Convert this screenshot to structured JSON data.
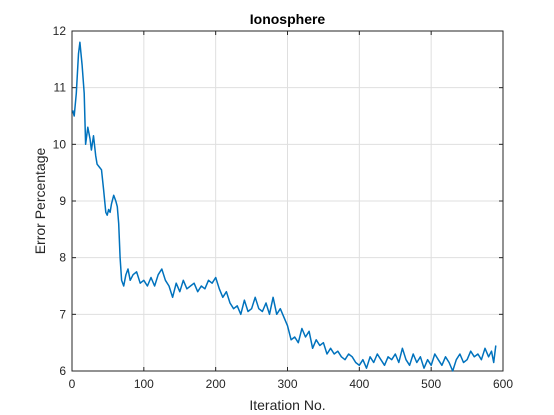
{
  "chart_data": {
    "type": "line",
    "title": "Ionosphere",
    "xlabel": "Iteration No.",
    "ylabel": "Error Percentage",
    "xlim": [
      0,
      600
    ],
    "ylim": [
      6,
      12
    ],
    "xticks": [
      0,
      100,
      200,
      300,
      400,
      500,
      600
    ],
    "yticks": [
      6,
      7,
      8,
      9,
      10,
      11,
      12
    ],
    "grid": true,
    "legend": "none",
    "colors": {
      "line": "#0072bd",
      "grid": "#dfdfdf",
      "axis": "#262626"
    },
    "series": [
      {
        "x": [
          1,
          3,
          6,
          9,
          11,
          14,
          17,
          19,
          22,
          25,
          27,
          30,
          33,
          35,
          38,
          41,
          44,
          47,
          49,
          51,
          53,
          55,
          58,
          61,
          63,
          65,
          67,
          69,
          72,
          75,
          78,
          81,
          85,
          90,
          95,
          100,
          105,
          110,
          115,
          120,
          125,
          130,
          135,
          140,
          145,
          150,
          155,
          160,
          165,
          170,
          175,
          180,
          185,
          190,
          195,
          200,
          205,
          210,
          215,
          220,
          225,
          230,
          235,
          240,
          245,
          250,
          255,
          260,
          265,
          270,
          275,
          280,
          285,
          290,
          295,
          300,
          305,
          310,
          315,
          320,
          325,
          330,
          335,
          340,
          345,
          350,
          355,
          360,
          365,
          370,
          375,
          380,
          385,
          390,
          395,
          400,
          405,
          410,
          415,
          420,
          425,
          430,
          435,
          440,
          445,
          450,
          455,
          460,
          465,
          470,
          475,
          480,
          485,
          490,
          495,
          500,
          505,
          510,
          515,
          520,
          525,
          530,
          535,
          540,
          545,
          550,
          555,
          560,
          565,
          570,
          575,
          580,
          584,
          587,
          590
        ],
        "y": [
          10.6,
          10.5,
          10.9,
          11.6,
          11.8,
          11.4,
          10.9,
          10.0,
          10.3,
          10.1,
          9.9,
          10.15,
          9.8,
          9.65,
          9.6,
          9.55,
          9.2,
          8.8,
          8.75,
          8.85,
          8.8,
          8.95,
          9.1,
          9.0,
          8.9,
          8.6,
          8.0,
          7.6,
          7.5,
          7.7,
          7.8,
          7.6,
          7.7,
          7.75,
          7.55,
          7.6,
          7.5,
          7.65,
          7.5,
          7.7,
          7.8,
          7.6,
          7.5,
          7.3,
          7.55,
          7.4,
          7.6,
          7.45,
          7.5,
          7.55,
          7.4,
          7.5,
          7.45,
          7.6,
          7.55,
          7.65,
          7.45,
          7.3,
          7.4,
          7.2,
          7.1,
          7.15,
          7.0,
          7.25,
          7.05,
          7.1,
          7.3,
          7.1,
          7.05,
          7.2,
          7.0,
          7.3,
          7.0,
          7.1,
          6.95,
          6.8,
          6.55,
          6.6,
          6.5,
          6.75,
          6.6,
          6.7,
          6.4,
          6.55,
          6.45,
          6.5,
          6.3,
          6.4,
          6.3,
          6.35,
          6.25,
          6.2,
          6.3,
          6.25,
          6.15,
          6.1,
          6.2,
          6.05,
          6.25,
          6.15,
          6.3,
          6.2,
          6.1,
          6.25,
          6.2,
          6.3,
          6.15,
          6.4,
          6.2,
          6.1,
          6.3,
          6.15,
          6.25,
          6.05,
          6.2,
          6.1,
          6.3,
          6.2,
          6.1,
          6.25,
          6.15,
          6.0,
          6.2,
          6.3,
          6.15,
          6.2,
          6.35,
          6.25,
          6.3,
          6.2,
          6.4,
          6.25,
          6.35,
          6.15,
          6.45
        ]
      }
    ]
  }
}
